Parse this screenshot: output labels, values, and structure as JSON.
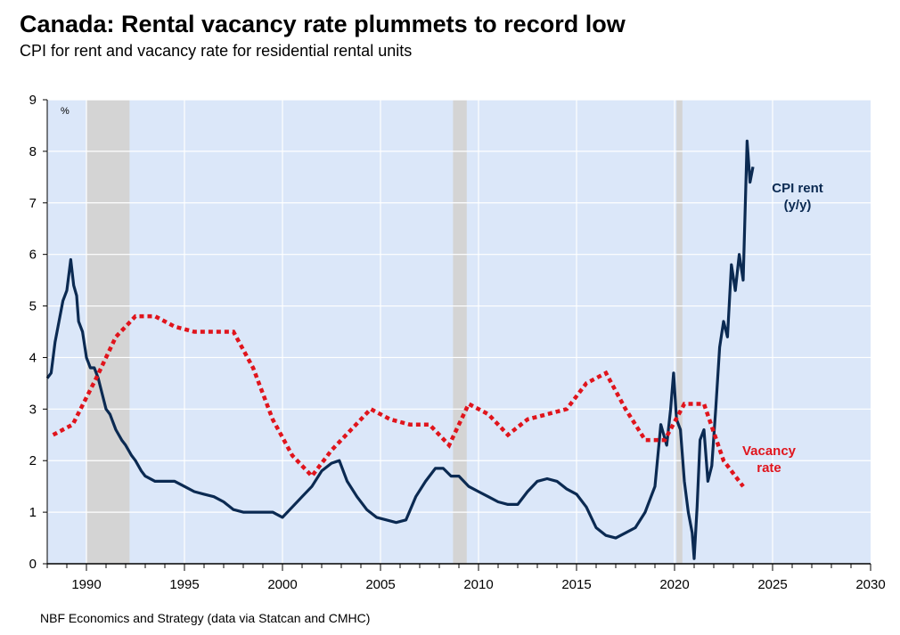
{
  "title": "Canada: Rental vacancy rate plummets to record low",
  "subtitle": "CPI for rent and vacancy rate for residential rental units",
  "source": "NBF Economics and Strategy (data via Statcan and CMHC)",
  "chart_data": {
    "type": "line",
    "y_unit": "%",
    "xlim": [
      1988,
      2030
    ],
    "ylim": [
      0,
      9
    ],
    "x_ticks": [
      1990,
      1995,
      2000,
      2005,
      2010,
      2015,
      2020,
      2025,
      2030
    ],
    "y_ticks": [
      0,
      1,
      2,
      3,
      4,
      5,
      6,
      7,
      8,
      9
    ],
    "grid": true,
    "recessions": [
      [
        1990.0,
        1992.2
      ],
      [
        2008.7,
        2009.4
      ],
      [
        2020.1,
        2020.4
      ]
    ],
    "annotations": [
      {
        "lines": [
          "CPI rent",
          "(y/y)"
        ],
        "series": "CPI rent (y/y)"
      },
      {
        "lines": [
          "Vacancy",
          "rate"
        ],
        "series": "Vacancy rate"
      }
    ],
    "colors": {
      "cpi": "#0b2a52",
      "vacancy": "#e0141c",
      "plot_bg": "#dbe7f9",
      "recession": "#d4d4d4"
    },
    "series": [
      {
        "name": "CPI rent (y/y)",
        "style": "solid",
        "x": [
          1988.0,
          1988.2,
          1988.4,
          1988.6,
          1988.8,
          1989.0,
          1989.2,
          1989.35,
          1989.5,
          1989.6,
          1989.8,
          1990.0,
          1990.2,
          1990.4,
          1990.6,
          1990.8,
          1991.0,
          1991.2,
          1991.5,
          1991.8,
          1992.0,
          1992.3,
          1992.5,
          1992.8,
          1993.0,
          1993.5,
          1994.0,
          1994.5,
          1995.0,
          1995.5,
          1996.0,
          1996.5,
          1997.0,
          1997.5,
          1998.0,
          1998.5,
          1999.0,
          1999.5,
          2000.0,
          2000.5,
          2001.0,
          2001.5,
          2002.0,
          2002.5,
          2002.9,
          2003.3,
          2003.8,
          2004.3,
          2004.8,
          2005.3,
          2005.8,
          2006.3,
          2006.8,
          2007.3,
          2007.8,
          2008.2,
          2008.6,
          2009.0,
          2009.5,
          2010.0,
          2010.5,
          2011.0,
          2011.5,
          2012.0,
          2012.5,
          2013.0,
          2013.5,
          2014.0,
          2014.5,
          2015.0,
          2015.5,
          2016.0,
          2016.5,
          2017.0,
          2017.5,
          2018.0,
          2018.5,
          2018.8,
          2019.0,
          2019.3,
          2019.6,
          2019.8,
          2019.95,
          2020.1,
          2020.3,
          2020.5,
          2020.7,
          2020.9,
          2021.0,
          2021.15,
          2021.3,
          2021.5,
          2021.7,
          2021.9,
          2022.1,
          2022.3,
          2022.5,
          2022.7,
          2022.9,
          2023.1,
          2023.3,
          2023.5,
          2023.7,
          2023.85,
          2024.0
        ],
        "values": [
          3.6,
          3.7,
          4.3,
          4.7,
          5.1,
          5.3,
          5.9,
          5.4,
          5.2,
          4.7,
          4.5,
          4.0,
          3.8,
          3.8,
          3.6,
          3.3,
          3.0,
          2.9,
          2.6,
          2.4,
          2.3,
          2.1,
          2.0,
          1.8,
          1.7,
          1.6,
          1.6,
          1.6,
          1.5,
          1.4,
          1.35,
          1.3,
          1.2,
          1.05,
          1.0,
          1.0,
          1.0,
          1.0,
          0.9,
          1.1,
          1.3,
          1.5,
          1.8,
          1.95,
          2.0,
          1.6,
          1.3,
          1.05,
          0.9,
          0.85,
          0.8,
          0.85,
          1.3,
          1.6,
          1.85,
          1.85,
          1.7,
          1.7,
          1.5,
          1.4,
          1.3,
          1.2,
          1.15,
          1.15,
          1.4,
          1.6,
          1.65,
          1.6,
          1.45,
          1.35,
          1.1,
          0.7,
          0.55,
          0.5,
          0.6,
          0.7,
          1.0,
          1.3,
          1.5,
          2.7,
          2.3,
          3.0,
          3.7,
          2.8,
          2.6,
          1.6,
          1.0,
          0.6,
          0.1,
          1.1,
          2.4,
          2.6,
          1.6,
          1.9,
          3.0,
          4.2,
          4.7,
          4.4,
          5.8,
          5.3,
          6.0,
          5.5,
          8.2,
          7.4,
          7.7
        ]
      },
      {
        "name": "Vacancy rate",
        "style": "dotted",
        "x": [
          1988.3,
          1989.3,
          1990.5,
          1991.5,
          1992.5,
          1993.5,
          1994.5,
          1995.5,
          1996.5,
          1997.5,
          1998.5,
          1999.5,
          2000.5,
          2001.5,
          2002.5,
          2003.5,
          2004.5,
          2005.5,
          2006.5,
          2007.5,
          2008.5,
          2009.5,
          2010.5,
          2011.5,
          2012.5,
          2013.5,
          2014.5,
          2015.5,
          2016.5,
          2017.5,
          2018.5,
          2019.5,
          2020.5,
          2021.5,
          2022.5,
          2023.5
        ],
        "values": [
          2.5,
          2.7,
          3.6,
          4.4,
          4.8,
          4.8,
          4.6,
          4.5,
          4.5,
          4.5,
          3.8,
          2.8,
          2.1,
          1.7,
          2.2,
          2.6,
          3.0,
          2.8,
          2.7,
          2.7,
          2.3,
          3.1,
          2.9,
          2.5,
          2.8,
          2.9,
          3.0,
          3.5,
          3.7,
          3.0,
          2.4,
          2.4,
          3.1,
          3.1,
          2.0,
          1.5
        ]
      }
    ]
  }
}
